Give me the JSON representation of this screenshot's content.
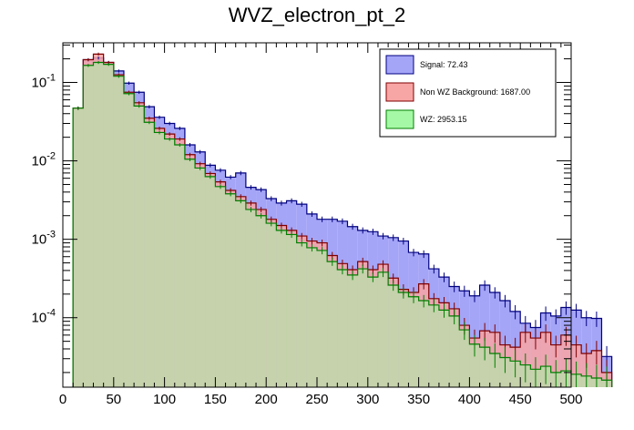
{
  "chart_data": {
    "type": "bar",
    "title": "WVZ_electron_pt_2",
    "xlabel": "",
    "ylabel": "",
    "xlim": [
      0,
      500
    ],
    "ylim": [
      1.3e-05,
      0.32
    ],
    "log_y": true,
    "grid": false,
    "legend_position": "top-right",
    "bin_width": 10,
    "x_ticks": [
      0,
      50,
      100,
      150,
      200,
      250,
      300,
      350,
      400,
      450,
      500
    ],
    "y_ticks": [
      {
        "value": 0.1,
        "base": "10",
        "exp": "-1"
      },
      {
        "value": 0.01,
        "base": "10",
        "exp": "-2"
      },
      {
        "value": 0.001,
        "base": "10",
        "exp": "-3"
      },
      {
        "value": 0.0001,
        "base": "10",
        "exp": "-4"
      }
    ],
    "bin_edges_start": 10,
    "series": [
      {
        "name": "Signal: 72.43",
        "color": "#a5a5f8",
        "edge": "#00007f",
        "values": [
          0.047,
          0.195,
          0.205,
          0.18,
          0.14,
          0.098,
          0.075,
          0.049,
          0.036,
          0.03,
          0.026,
          0.016,
          0.013,
          0.0088,
          0.0076,
          0.0062,
          0.007,
          0.0046,
          0.0043,
          0.0033,
          0.0029,
          0.0031,
          0.0028,
          0.0021,
          0.0018,
          0.0018,
          0.0017,
          0.00145,
          0.0013,
          0.00125,
          0.0011,
          0.00105,
          0.00095,
          0.00068,
          0.00065,
          0.00042,
          0.00033,
          0.00025,
          0.00022,
          0.00019,
          0.00026,
          0.00021,
          0.000165,
          0.00012,
          8.5e-05,
          7.5e-05,
          0.000115,
          0.000105,
          0.000135,
          0.000125,
          0.0001,
          9.8e-05,
          3.2e-05
        ]
      },
      {
        "name": "Non WZ Background: 1687.00",
        "color": "#f8a5a5",
        "edge": "#7f0000",
        "values": [
          0.047,
          0.195,
          0.23,
          0.18,
          0.125,
          0.075,
          0.055,
          0.035,
          0.026,
          0.022,
          0.019,
          0.012,
          0.0092,
          0.0069,
          0.0054,
          0.0042,
          0.0035,
          0.0029,
          0.0024,
          0.0018,
          0.0015,
          0.0013,
          0.0011,
          0.00095,
          0.0009,
          0.00062,
          0.00049,
          0.00041,
          0.00052,
          0.00041,
          0.00048,
          0.00032,
          0.00023,
          0.00021,
          0.00027,
          0.000175,
          0.000155,
          0.00013,
          8e-05,
          5.5e-05,
          6.8e-05,
          6.5e-05,
          4.5e-05,
          4.2e-05,
          6.5e-05,
          5.5e-05,
          6.5e-05,
          4.5e-05,
          6e-05,
          4.5e-05,
          3.5e-05,
          3.8e-05,
          2e-05
        ]
      },
      {
        "name": "WZ: 2953.15",
        "color": "#a5f8a5",
        "edge": "#007f00",
        "values": [
          0.047,
          0.165,
          0.18,
          0.17,
          0.12,
          0.072,
          0.05,
          0.031,
          0.023,
          0.019,
          0.016,
          0.0105,
          0.0081,
          0.0063,
          0.0047,
          0.0038,
          0.0031,
          0.0024,
          0.002,
          0.0016,
          0.0013,
          0.00115,
          0.0009,
          0.00078,
          0.00072,
          0.00052,
          0.00041,
          0.00035,
          0.00042,
          0.00033,
          0.00038,
          0.00026,
          0.00021,
          0.000185,
          0.000165,
          0.000145,
          0.000125,
          0.000105,
          7e-05,
          4.6e-05,
          4.2e-05,
          3.5e-05,
          3.1e-05,
          2.8e-05,
          2.5e-05,
          2.2e-05,
          2.4e-05,
          2e-05,
          2.1e-05,
          1.9e-05,
          1.8e-05,
          1.7e-05,
          1.6e-05
        ]
      }
    ]
  }
}
